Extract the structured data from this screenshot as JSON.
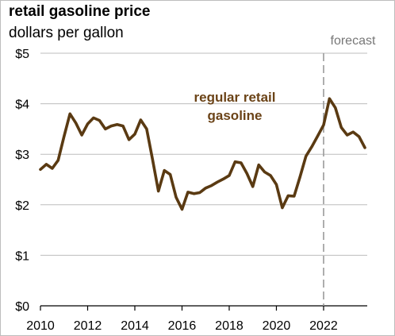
{
  "chart_data": {
    "type": "line",
    "title": "retail gasoline price",
    "subtitle": "dollars per gallon",
    "xlim": [
      2010,
      2023.85
    ],
    "ylim": [
      0,
      5
    ],
    "x_ticks": [
      "2010",
      "2012",
      "2014",
      "2016",
      "2018",
      "2020",
      "2022"
    ],
    "y_ticks": [
      "$0",
      "$1",
      "$2",
      "$3",
      "$4",
      "$5"
    ],
    "grid": true,
    "forecast_start": 2022.0,
    "forecast_label": "forecast",
    "annotation": [
      "regular retail",
      "gasoline"
    ],
    "line_color": "#5a3a12",
    "annotation_color": "#6b4317",
    "series": [
      {
        "x": [
          2010.0,
          2010.25,
          2010.5,
          2010.75,
          2011.0,
          2011.25,
          2011.5,
          2011.75,
          2012.0,
          2012.25,
          2012.5,
          2012.75,
          2013.0,
          2013.25,
          2013.5,
          2013.75,
          2014.0,
          2014.25,
          2014.5,
          2014.75,
          2015.0,
          2015.25,
          2015.5,
          2015.75,
          2016.0,
          2016.25,
          2016.5,
          2016.75,
          2017.0,
          2017.25,
          2017.5,
          2017.75,
          2018.0,
          2018.25,
          2018.5,
          2018.75,
          2019.0,
          2019.25,
          2019.5,
          2019.75,
          2020.0,
          2020.25,
          2020.5,
          2020.75,
          2021.0,
          2021.25,
          2021.5,
          2021.75,
          2022.0,
          2022.25,
          2022.5,
          2022.75,
          2023.0,
          2023.25,
          2023.5,
          2023.75
        ],
        "values": [
          2.7,
          2.8,
          2.72,
          2.88,
          3.35,
          3.8,
          3.62,
          3.38,
          3.6,
          3.72,
          3.67,
          3.5,
          3.56,
          3.59,
          3.56,
          3.29,
          3.4,
          3.68,
          3.5,
          2.9,
          2.27,
          2.68,
          2.6,
          2.15,
          1.91,
          2.25,
          2.22,
          2.24,
          2.33,
          2.38,
          2.45,
          2.51,
          2.58,
          2.85,
          2.83,
          2.62,
          2.36,
          2.79,
          2.65,
          2.58,
          2.4,
          1.94,
          2.18,
          2.17,
          2.55,
          2.96,
          3.15,
          3.36,
          3.58,
          4.1,
          3.92,
          3.53,
          3.38,
          3.44,
          3.35,
          3.13
        ]
      }
    ]
  }
}
